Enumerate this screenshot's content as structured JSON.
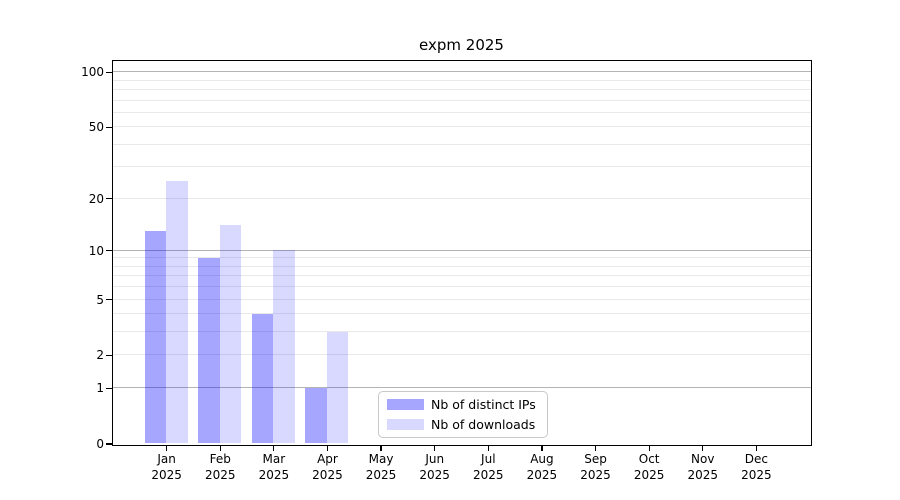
{
  "chart_data": {
    "type": "bar",
    "title": "expm 2025",
    "categories": [
      "Jan",
      "Feb",
      "Mar",
      "Apr",
      "May",
      "Jun",
      "Jul",
      "Aug",
      "Sep",
      "Oct",
      "Nov",
      "Dec"
    ],
    "category_year": "2025",
    "series": [
      {
        "key": "distinct-ips",
        "name": "Nb of distinct IPs",
        "color": "#a6a6ff",
        "fill": "rgba(0,0,255,0.35)",
        "values": [
          13,
          9,
          4,
          1,
          0,
          0,
          0,
          0,
          0,
          0,
          0,
          0
        ]
      },
      {
        "key": "downloads",
        "name": "Nb of downloads",
        "color": "#d9d9ff",
        "fill": "rgba(0,0,255,0.15)",
        "values": [
          25,
          14,
          10,
          3,
          0,
          0,
          0,
          0,
          0,
          0,
          0,
          0
        ]
      }
    ],
    "y_axis": {
      "scale": "log1p",
      "max": 115,
      "ticks": [
        0,
        1,
        2,
        5,
        10,
        20,
        50,
        100
      ],
      "major_gridlines": [
        1,
        10,
        100
      ],
      "minor_gridlines": [
        2,
        3,
        4,
        5,
        6,
        7,
        8,
        9,
        20,
        30,
        40,
        50,
        60,
        70,
        80,
        90
      ]
    },
    "x_axis": {
      "months_shown": 12
    },
    "legend": {
      "position": "lower-center"
    },
    "colors": {
      "major_grid": "#b4b4b4",
      "minor_grid": "#e9e9e9",
      "spine": "#000000",
      "text": "#000000",
      "legend_border": "#c9c9c9"
    }
  }
}
